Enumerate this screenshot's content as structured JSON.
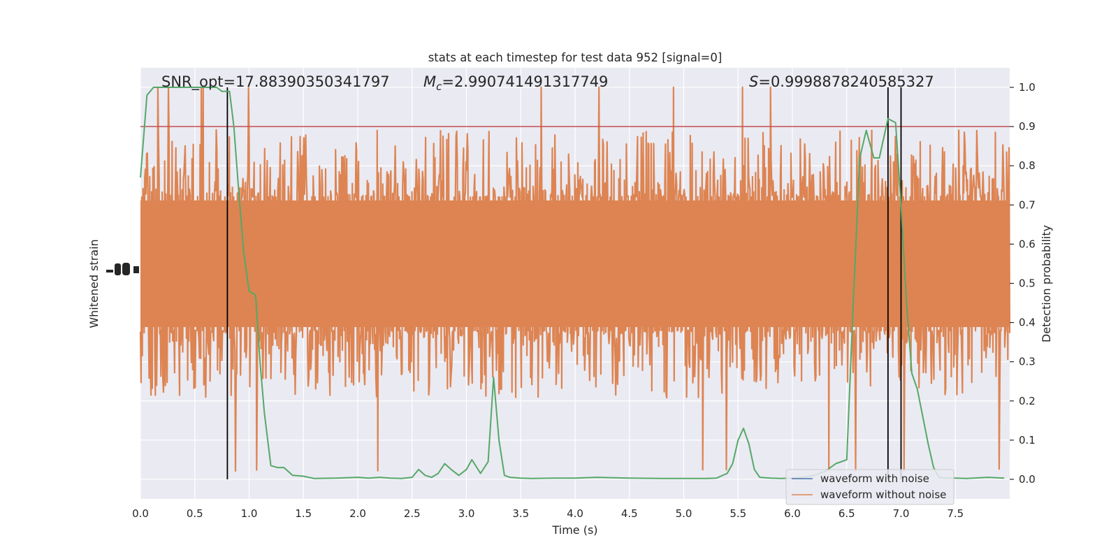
{
  "chart_data": {
    "type": "line",
    "title": "stats at each timestep for test data 952 [signal=0]",
    "xlabel": "Time (s)",
    "ylabel_left": "Whitened strain",
    "ylabel_right": "Detection probability",
    "xlim": [
      0,
      8
    ],
    "ylim_right": [
      -0.05,
      1.05
    ],
    "x_ticks": [
      0.0,
      0.5,
      1.0,
      1.5,
      2.0,
      2.5,
      3.0,
      3.5,
      4.0,
      4.5,
      5.0,
      5.5,
      6.0,
      6.5,
      7.0,
      7.5
    ],
    "x_tick_labels": [
      "0.0",
      "0.5",
      "1.0",
      "1.5",
      "2.0",
      "2.5",
      "3.0",
      "3.5",
      "4.0",
      "4.5",
      "5.0",
      "5.5",
      "6.0",
      "6.5",
      "7.0",
      "7.5"
    ],
    "y_ticks_right": [
      0.0,
      0.1,
      0.2,
      0.3,
      0.4,
      0.5,
      0.6,
      0.7,
      0.8,
      0.9,
      1.0
    ],
    "y_tick_labels_right": [
      "0.0",
      "0.1",
      "0.2",
      "0.3",
      "0.4",
      "0.5",
      "0.6",
      "0.7",
      "0.8",
      "0.9",
      "1.0"
    ],
    "grid": true,
    "legend_position": "lower-right",
    "annotations": {
      "snr": "SNR_opt=17.88390350341797",
      "mc_symbol": "M",
      "mc_sub": "c",
      "mc_value": "=2.990741491317749",
      "s_symbol": "S",
      "s_value": "=0.9998878240585327"
    },
    "threshold": {
      "y": 0.9,
      "color": "#c44e52"
    },
    "trigger_lines": {
      "x": [
        0.8,
        6.88,
        7.0
      ],
      "y_range": [
        0.0,
        1.0
      ],
      "color": "#000000"
    },
    "series": [
      {
        "name": "waveform with noise",
        "color": "#4c72b0",
        "kind": "noise",
        "values": []
      },
      {
        "name": "waveform without noise",
        "color": "#dd8452",
        "kind": "noise",
        "center": 0.55,
        "band_halfwidth": 0.17,
        "spike_max": 1.0,
        "spike_min": 0.02,
        "values": []
      },
      {
        "name": "",
        "color": "#55a868",
        "kind": "line",
        "x": [
          0.0,
          0.06,
          0.12,
          0.2,
          0.3,
          0.5,
          0.7,
          0.75,
          0.82,
          0.86,
          0.9,
          0.95,
          1.0,
          1.06,
          1.1,
          1.14,
          1.2,
          1.26,
          1.32,
          1.4,
          1.5,
          1.6,
          1.8,
          2.0,
          2.1,
          2.2,
          2.3,
          2.4,
          2.5,
          2.56,
          2.62,
          2.68,
          2.74,
          2.8,
          2.86,
          2.93,
          3.0,
          3.05,
          3.13,
          3.2,
          3.25,
          3.3,
          3.35,
          3.4,
          3.5,
          3.6,
          3.8,
          4.0,
          4.2,
          4.5,
          4.8,
          5.0,
          5.2,
          5.3,
          5.4,
          5.45,
          5.5,
          5.55,
          5.6,
          5.65,
          5.7,
          5.8,
          5.9,
          6.0,
          6.1,
          6.2,
          6.3,
          6.4,
          6.5,
          6.56,
          6.62,
          6.68,
          6.75,
          6.8,
          6.88,
          6.95,
          7.0,
          7.05,
          7.1,
          7.15,
          7.2,
          7.25,
          7.3,
          7.35,
          7.4,
          7.5,
          7.6,
          7.8,
          7.95
        ],
        "y": [
          0.77,
          0.98,
          1.0,
          1.0,
          1.0,
          1.0,
          1.0,
          0.99,
          0.99,
          0.9,
          0.75,
          0.58,
          0.48,
          0.47,
          0.3,
          0.17,
          0.035,
          0.03,
          0.03,
          0.01,
          0.008,
          0.002,
          0.003,
          0.005,
          0.003,
          0.005,
          0.003,
          0.002,
          0.005,
          0.025,
          0.01,
          0.005,
          0.015,
          0.04,
          0.025,
          0.01,
          0.025,
          0.05,
          0.015,
          0.045,
          0.26,
          0.1,
          0.01,
          0.005,
          0.003,
          0.002,
          0.003,
          0.003,
          0.005,
          0.003,
          0.002,
          0.002,
          0.002,
          0.003,
          0.015,
          0.04,
          0.1,
          0.13,
          0.09,
          0.025,
          0.005,
          0.003,
          0.002,
          0.003,
          0.005,
          0.01,
          0.02,
          0.04,
          0.05,
          0.45,
          0.82,
          0.89,
          0.82,
          0.82,
          0.92,
          0.91,
          0.7,
          0.45,
          0.27,
          0.23,
          0.16,
          0.09,
          0.03,
          0.005,
          0.003,
          0.003,
          0.002,
          0.005,
          0.003
        ]
      }
    ]
  }
}
